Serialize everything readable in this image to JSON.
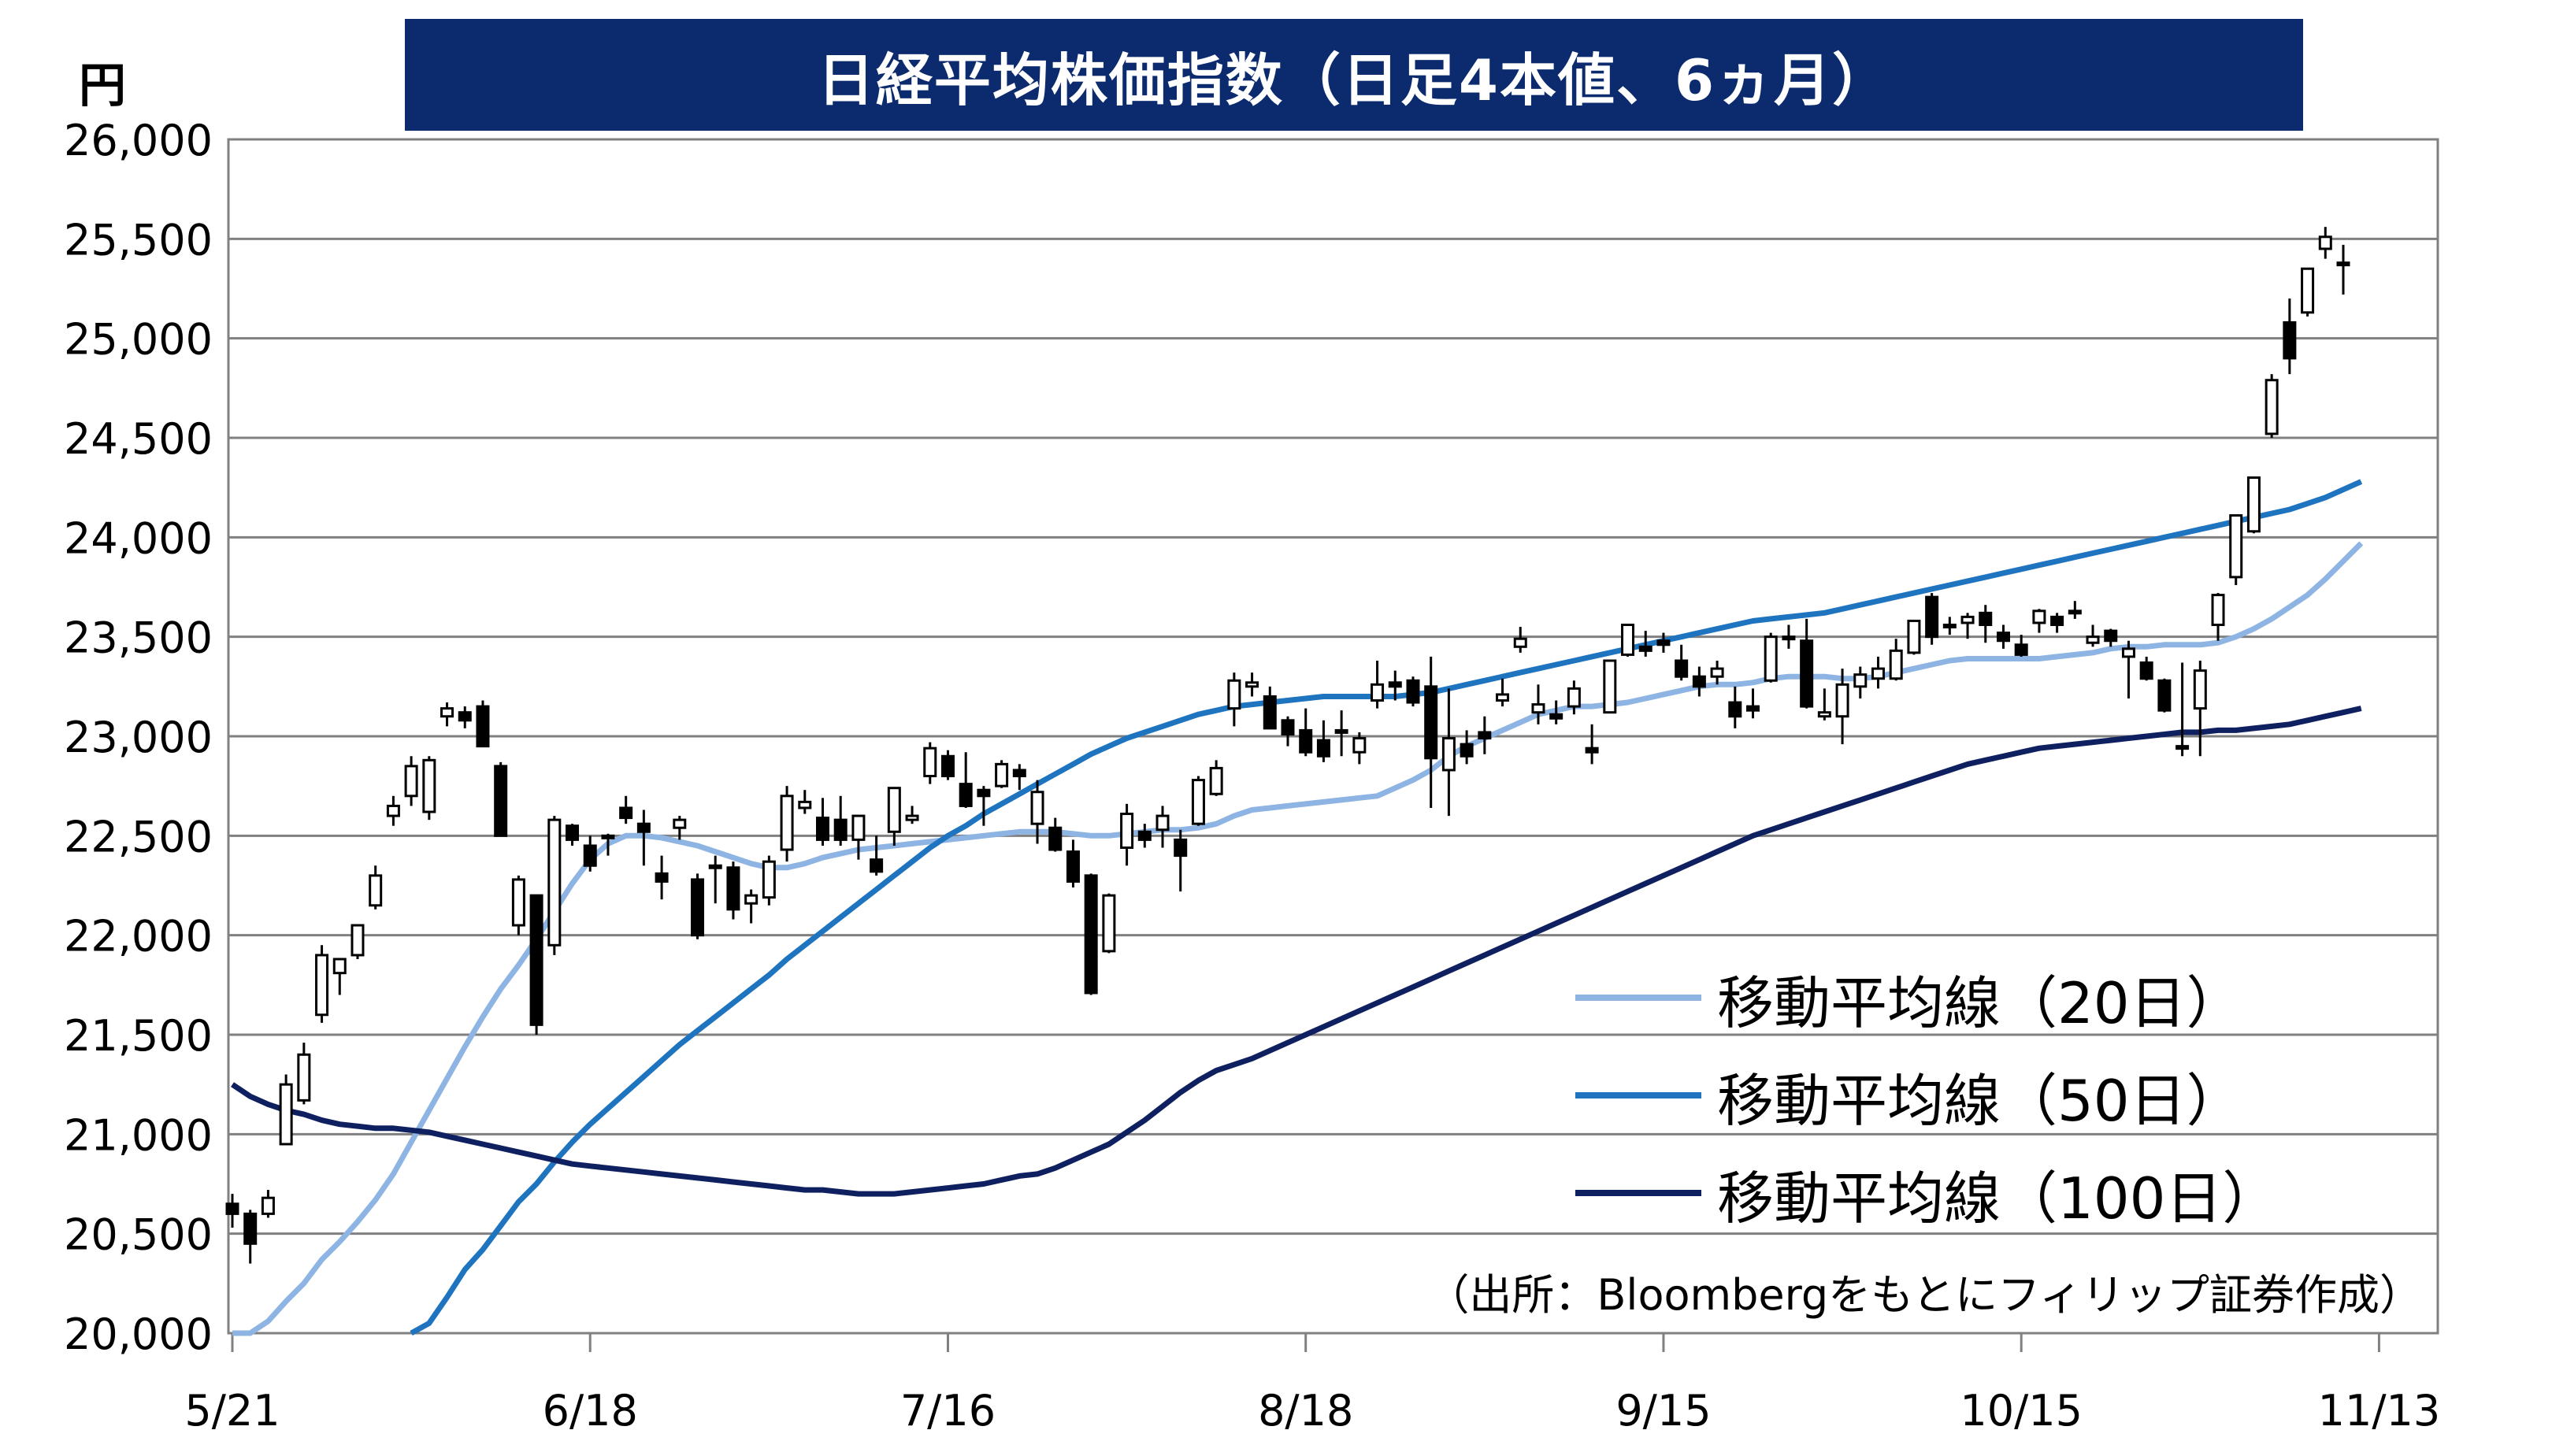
{
  "title": "日経平均株価指数（日足4本値、6ヵ月）",
  "y_unit": "円",
  "source_note": "（出所：Bloombergをもとにフィリップ証券作成）",
  "colors": {
    "title_bg": "#0b2b6e",
    "title_text": "#ffffff",
    "ma20": "#8db4e2",
    "ma50": "#1f74c0",
    "ma100": "#0f2060",
    "candle_up_fill": "#ffffff",
    "candle_down_fill": "#000000",
    "grid": "#808080"
  },
  "chart_data": {
    "type": "candlestick",
    "title": "日経平均株価指数（日足4本値、6ヵ月）",
    "ylabel": "円",
    "ylim": [
      20000,
      26000
    ],
    "yticks": [
      20000,
      20500,
      21000,
      21500,
      22000,
      22500,
      23000,
      23500,
      24000,
      24500,
      25000,
      25500,
      26000
    ],
    "ytick_labels": [
      "20,000",
      "20,500",
      "21,000",
      "21,500",
      "22,000",
      "22,500",
      "23,000",
      "23,500",
      "24,000",
      "24,500",
      "25,000",
      "25,500",
      "26,000"
    ],
    "x_ticks": [
      {
        "index": 0,
        "label": "5/21"
      },
      {
        "index": 20,
        "label": "6/18"
      },
      {
        "index": 40,
        "label": "7/16"
      },
      {
        "index": 60,
        "label": "8/18"
      },
      {
        "index": 80,
        "label": "9/15"
      },
      {
        "index": 100,
        "label": "10/15"
      },
      {
        "index": 120,
        "label": "11/13"
      }
    ],
    "grid": true,
    "legend_position": "bottom-right",
    "candles": [
      [
        20650,
        20700,
        20530,
        20600
      ],
      [
        20600,
        20620,
        20350,
        20450
      ],
      [
        20600,
        20720,
        20580,
        20680
      ],
      [
        20950,
        21300,
        20950,
        21250
      ],
      [
        21170,
        21460,
        21150,
        21400
      ],
      [
        21600,
        21950,
        21560,
        21900
      ],
      [
        21810,
        21870,
        21700,
        21880
      ],
      [
        21900,
        22050,
        21880,
        22050
      ],
      [
        22150,
        22350,
        22130,
        22300
      ],
      [
        22600,
        22700,
        22550,
        22650
      ],
      [
        22700,
        22900,
        22650,
        22850
      ],
      [
        22620,
        22900,
        22580,
        22880
      ],
      [
        23100,
        23170,
        23050,
        23140
      ],
      [
        23120,
        23150,
        23040,
        23080
      ],
      [
        23150,
        23180,
        22970,
        22950
      ],
      [
        22850,
        22870,
        22500,
        22500
      ],
      [
        22050,
        22300,
        22000,
        22280
      ],
      [
        22200,
        22200,
        21500,
        21550
      ],
      [
        21950,
        22600,
        21900,
        22580
      ],
      [
        22550,
        22560,
        22450,
        22480
      ],
      [
        22450,
        22500,
        22320,
        22350
      ],
      [
        22500,
        22510,
        22400,
        22490
      ],
      [
        22640,
        22700,
        22560,
        22590
      ],
      [
        22560,
        22630,
        22350,
        22520
      ],
      [
        22310,
        22400,
        22180,
        22270
      ],
      [
        22540,
        22600,
        22480,
        22580
      ],
      [
        22280,
        22310,
        21980,
        22000
      ],
      [
        22340,
        22400,
        22160,
        22350
      ],
      [
        22340,
        22370,
        22080,
        22130
      ],
      [
        22160,
        22230,
        22060,
        22200
      ],
      [
        22190,
        22400,
        22150,
        22370
      ],
      [
        22430,
        22750,
        22370,
        22700
      ],
      [
        22640,
        22730,
        22610,
        22670
      ],
      [
        22590,
        22690,
        22450,
        22480
      ],
      [
        22580,
        22700,
        22450,
        22480
      ],
      [
        22480,
        22600,
        22380,
        22600
      ],
      [
        22380,
        22500,
        22300,
        22320
      ],
      [
        22520,
        22740,
        22450,
        22740
      ],
      [
        22580,
        22650,
        22560,
        22600
      ],
      [
        22800,
        22970,
        22760,
        22940
      ],
      [
        22900,
        22930,
        22780,
        22800
      ],
      [
        22760,
        22920,
        22640,
        22650
      ],
      [
        22730,
        22750,
        22550,
        22700
      ],
      [
        22750,
        22880,
        22740,
        22860
      ],
      [
        22830,
        22860,
        22730,
        22800
      ],
      [
        22560,
        22780,
        22460,
        22720
      ],
      [
        22540,
        22590,
        22420,
        22430
      ],
      [
        22420,
        22480,
        22240,
        22270
      ],
      [
        22300,
        22310,
        21700,
        21710
      ],
      [
        21920,
        22210,
        21910,
        22200
      ],
      [
        22440,
        22660,
        22350,
        22610
      ],
      [
        22520,
        22560,
        22440,
        22480
      ],
      [
        22530,
        22650,
        22440,
        22600
      ],
      [
        22480,
        22530,
        22220,
        22400
      ],
      [
        22560,
        22800,
        22550,
        22780
      ],
      [
        22710,
        22880,
        22700,
        22840
      ],
      [
        23140,
        23320,
        23050,
        23280
      ],
      [
        23250,
        23320,
        23200,
        23270
      ],
      [
        23200,
        23250,
        23040,
        23040
      ],
      [
        23080,
        23100,
        22950,
        23010
      ],
      [
        23030,
        23140,
        22900,
        22920
      ],
      [
        22980,
        23080,
        22870,
        22900
      ],
      [
        23030,
        23130,
        22900,
        23020
      ],
      [
        22920,
        23020,
        22860,
        22990
      ],
      [
        23180,
        23380,
        23140,
        23260
      ],
      [
        23270,
        23330,
        23180,
        23250
      ],
      [
        23280,
        23300,
        23150,
        23170
      ],
      [
        23250,
        23400,
        22640,
        22890
      ],
      [
        22830,
        23240,
        22600,
        22990
      ],
      [
        22960,
        23030,
        22860,
        22900
      ],
      [
        23020,
        23100,
        22910,
        22990
      ],
      [
        23180,
        23290,
        23150,
        23210
      ],
      [
        23450,
        23550,
        23420,
        23490
      ],
      [
        23120,
        23260,
        23060,
        23160
      ],
      [
        23110,
        23180,
        23060,
        23090
      ],
      [
        23150,
        23280,
        23110,
        23240
      ],
      [
        22940,
        23060,
        22860,
        22920
      ],
      [
        23120,
        23380,
        23120,
        23380
      ],
      [
        23410,
        23550,
        23400,
        23560
      ],
      [
        23450,
        23530,
        23400,
        23430
      ],
      [
        23480,
        23520,
        23420,
        23460
      ],
      [
        23380,
        23460,
        23280,
        23300
      ],
      [
        23300,
        23350,
        23200,
        23250
      ],
      [
        23300,
        23380,
        23260,
        23340
      ],
      [
        23170,
        23250,
        23040,
        23100
      ],
      [
        23150,
        23240,
        23090,
        23130
      ],
      [
        23280,
        23520,
        23270,
        23500
      ],
      [
        23500,
        23560,
        23440,
        23490
      ],
      [
        23480,
        23590,
        23140,
        23150
      ],
      [
        23100,
        23240,
        23080,
        23120
      ],
      [
        23100,
        23340,
        22960,
        23260
      ],
      [
        23250,
        23350,
        23190,
        23310
      ],
      [
        23290,
        23400,
        23240,
        23340
      ],
      [
        23290,
        23490,
        23280,
        23430
      ],
      [
        23420,
        23580,
        23410,
        23580
      ],
      [
        23700,
        23720,
        23460,
        23500
      ],
      [
        23560,
        23600,
        23510,
        23550
      ],
      [
        23570,
        23620,
        23490,
        23600
      ],
      [
        23620,
        23660,
        23470,
        23560
      ],
      [
        23520,
        23560,
        23440,
        23480
      ],
      [
        23460,
        23510,
        23400,
        23410
      ],
      [
        23570,
        23640,
        23520,
        23630
      ],
      [
        23600,
        23620,
        23520,
        23560
      ],
      [
        23630,
        23680,
        23590,
        23620
      ],
      [
        23470,
        23560,
        23450,
        23500
      ],
      [
        23530,
        23540,
        23450,
        23480
      ],
      [
        23400,
        23480,
        23190,
        23440
      ],
      [
        23370,
        23400,
        23280,
        23290
      ],
      [
        23280,
        23290,
        23120,
        23130
      ],
      [
        22950,
        23370,
        22900,
        22940
      ],
      [
        23140,
        23380,
        22900,
        23330
      ],
      [
        23560,
        23720,
        23480,
        23710
      ],
      [
        23800,
        24090,
        23760,
        24110
      ],
      [
        24030,
        24300,
        24020,
        24300
      ],
      [
        24520,
        24820,
        24500,
        24790
      ],
      [
        25080,
        25200,
        24820,
        24900
      ],
      [
        25130,
        25350,
        25110,
        25350
      ],
      [
        25450,
        25560,
        25400,
        25510
      ],
      [
        25380,
        25470,
        25220,
        25380
      ]
    ],
    "series": [
      {
        "name": "移動平均線（20日）",
        "values": [
          19980,
          20000,
          20060,
          20160,
          20250,
          20370,
          20460,
          20560,
          20670,
          20800,
          20960,
          21120,
          21280,
          21440,
          21590,
          21730,
          21850,
          21980,
          22120,
          22260,
          22380,
          22460,
          22500,
          22500,
          22490,
          22470,
          22450,
          22420,
          22390,
          22360,
          22340,
          22340,
          22360,
          22390,
          22410,
          22430,
          22440,
          22450,
          22460,
          22470,
          22480,
          22490,
          22500,
          22510,
          22520,
          22520,
          22520,
          22510,
          22500,
          22500,
          22510,
          22520,
          22530,
          22530,
          22540,
          22560,
          22600,
          22630,
          22640,
          22650,
          22660,
          22670,
          22680,
          22690,
          22700,
          22740,
          22780,
          22830,
          22900,
          22950,
          22990,
          23030,
          23070,
          23110,
          23130,
          23150,
          23150,
          23160,
          23170,
          23190,
          23210,
          23230,
          23250,
          23260,
          23260,
          23270,
          23290,
          23300,
          23300,
          23300,
          23290,
          23290,
          23300,
          23320,
          23340,
          23360,
          23380,
          23390,
          23390,
          23390,
          23390,
          23390,
          23400,
          23410,
          23420,
          23440,
          23450,
          23450,
          23460,
          23460,
          23460,
          23470,
          23500,
          23540,
          23590,
          23650,
          23710,
          23790,
          23880,
          23970
        ]
      },
      {
        "name": "移動平均線（50日）",
        "values": [
          null,
          null,
          null,
          null,
          null,
          null,
          null,
          null,
          null,
          null,
          19900,
          20050,
          20180,
          20320,
          20420,
          20540,
          20660,
          20750,
          20860,
          20960,
          21050,
          21130,
          21210,
          21290,
          21370,
          21450,
          21520,
          21590,
          21660,
          21730,
          21800,
          21880,
          21950,
          22020,
          22090,
          22160,
          22230,
          22300,
          22370,
          22440,
          22500,
          22550,
          22610,
          22660,
          22710,
          22760,
          22810,
          22860,
          22910,
          22950,
          22990,
          23020,
          23050,
          23080,
          23110,
          23130,
          23150,
          23160,
          23170,
          23180,
          23190,
          23200,
          23200,
          23200,
          23200,
          23200,
          23210,
          23220,
          23240,
          23260,
          23280,
          23300,
          23320,
          23340,
          23360,
          23380,
          23400,
          23420,
          23440,
          23460,
          23480,
          23500,
          23520,
          23540,
          23560,
          23580,
          23590,
          23600,
          23610,
          23620,
          23640,
          23660,
          23680,
          23700,
          23720,
          23740,
          23760,
          23780,
          23800,
          23820,
          23840,
          23860,
          23880,
          23900,
          23920,
          23940,
          23960,
          23980,
          24000,
          24020,
          24040,
          24060,
          24080,
          24100,
          24120,
          24140,
          24170,
          24200,
          24240,
          24280
        ]
      },
      {
        "name": "移動平均線（100日）",
        "values": [
          21250,
          21190,
          21150,
          21120,
          21100,
          21070,
          21050,
          21040,
          21030,
          21030,
          21020,
          21010,
          20990,
          20970,
          20950,
          20930,
          20910,
          20890,
          20870,
          20850,
          20840,
          20830,
          20820,
          20810,
          20800,
          20790,
          20780,
          20770,
          20760,
          20750,
          20740,
          20730,
          20720,
          20720,
          20710,
          20700,
          20700,
          20700,
          20710,
          20720,
          20730,
          20740,
          20750,
          20770,
          20790,
          20800,
          20830,
          20870,
          20910,
          20950,
          21010,
          21070,
          21140,
          21210,
          21270,
          21320,
          21350,
          21380,
          21420,
          21460,
          21500,
          21540,
          21580,
          21620,
          21660,
          21700,
          21740,
          21780,
          21820,
          21860,
          21900,
          21940,
          21980,
          22020,
          22060,
          22100,
          22140,
          22180,
          22220,
          22260,
          22300,
          22340,
          22380,
          22420,
          22460,
          22500,
          22530,
          22560,
          22590,
          22620,
          22650,
          22680,
          22710,
          22740,
          22770,
          22800,
          22830,
          22860,
          22880,
          22900,
          22920,
          22940,
          22950,
          22960,
          22970,
          22980,
          22990,
          23000,
          23010,
          23020,
          23020,
          23030,
          23030,
          23040,
          23050,
          23060,
          23080,
          23100,
          23120,
          23140
        ]
      }
    ]
  }
}
